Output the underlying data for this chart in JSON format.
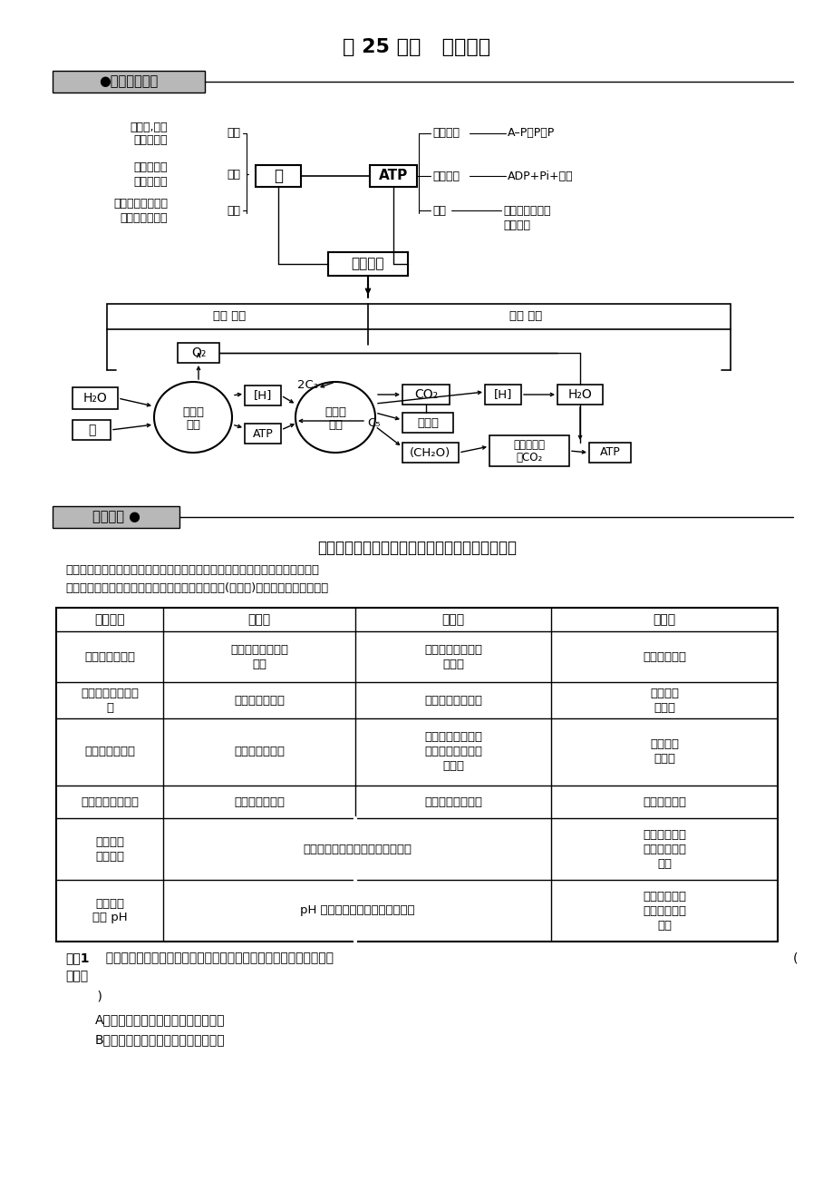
{
  "title": "第 25 课时   章末复习",
  "bg_color": "#ffffff",
  "section1_label": "●知识体系构建",
  "section2_label": "专题整合 ●",
  "part1_title": "一、酶的特性与影响酶催化速率的因素的研究方法",
  "part1_intro1": "以所要研究的因素为自变量，酶的催化速率为因变量，其余因素均为无关变量；",
  "part1_intro2": "严格操纵自变量，控制无关变量，观察并记录结果(因变量)。相关实验设计如下：",
  "table_headers": [
    "实验名称",
    "实验组",
    "对照组",
    "因变量"
  ],
  "row0": [
    "验证酶是蛋白质",
    "待测酶液＋双缩脲\n试剂",
    "已知蛋白液＋双缩\n脲试剂",
    "是否出现紫色"
  ],
  "row1": [
    "验证酶具有催化作\n用",
    "底物＋相应酶液",
    "底物＋等量蒸馏水",
    "底物是否\n被分解"
  ],
  "row2": [
    "验证酶的专一性",
    "底物＋相应酶液",
    "另一底物＋相同酶\n液或同一底物＋另\n一酶液",
    "底物是否\n被分解"
  ],
  "row3": [
    "验证酶具有高效性",
    "底物＋相应酶液",
    "底物＋无机催化剂",
    "底物分解速率"
  ],
  "row4_c0": "探究酶的\n适宜温度",
  "row4_c12": "温度梯度下处理后的底物和酶混合",
  "row4_c3": "底物的分解速\n率或底物的剩\n余量",
  "row5_c0": "探究酶的\n最适 pH",
  "row5_c12": "pH 梯度下处理后的底物和酶混合",
  "row5_c3": "底物的分解速\n率或底物的剩\n余量",
  "train_label": "训练1",
  "train_text": "  设计证明生物酶具有催化性、特异性、高效性实验，选用的对照条件",
  "train_text2": "分别是",
  "bracket_right": "(",
  "paren_close": "    )",
  "option_a": "A．化学催化剂，同一物质，自然条件",
  "option_b": "B．自然条件，不同物质，化学催化剂"
}
